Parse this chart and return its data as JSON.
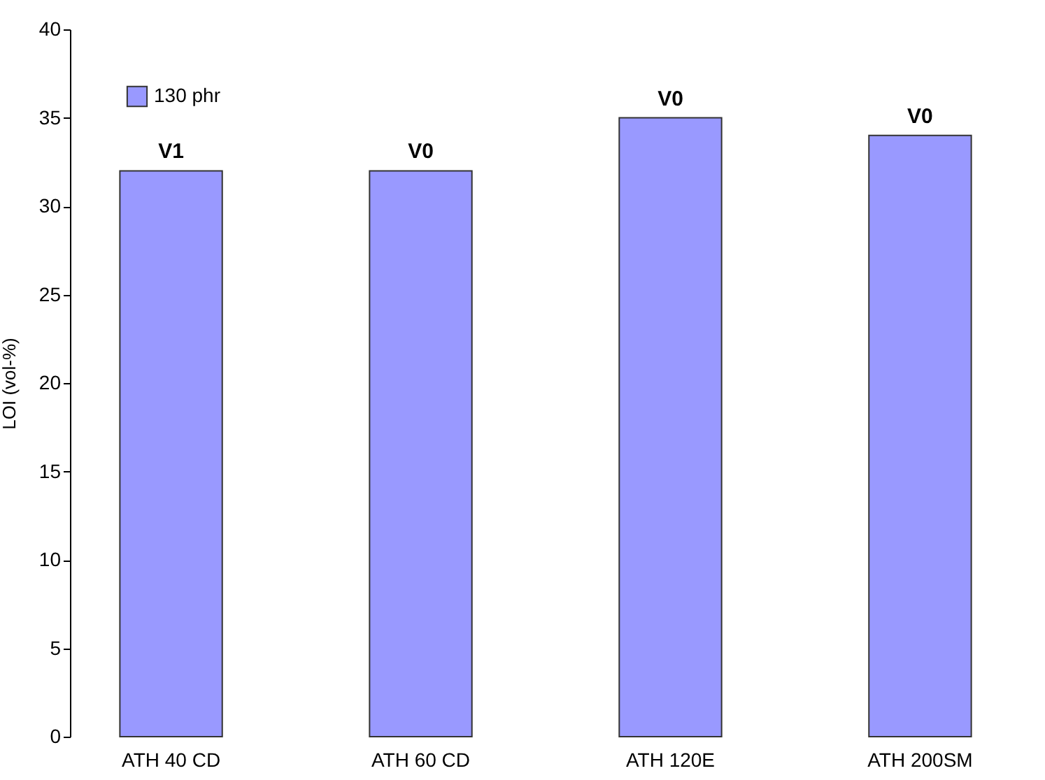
{
  "chart_data": {
    "type": "bar",
    "ylabel": "LOI (vol-%)",
    "categories": [
      "ATH 40 CD",
      "ATH 60 CD",
      "ATH 120E",
      "ATH 200SM"
    ],
    "series": [
      {
        "name": "130 phr",
        "color": "#9999ff",
        "values": [
          32,
          32,
          35,
          34
        ],
        "value_labels": [
          "V1",
          "V0",
          "V0",
          "V0"
        ]
      }
    ],
    "ylim": [
      0,
      40
    ],
    "yticks": [
      0,
      5,
      10,
      15,
      20,
      25,
      30,
      35,
      40
    ],
    "grid": false,
    "legend": "top left"
  }
}
